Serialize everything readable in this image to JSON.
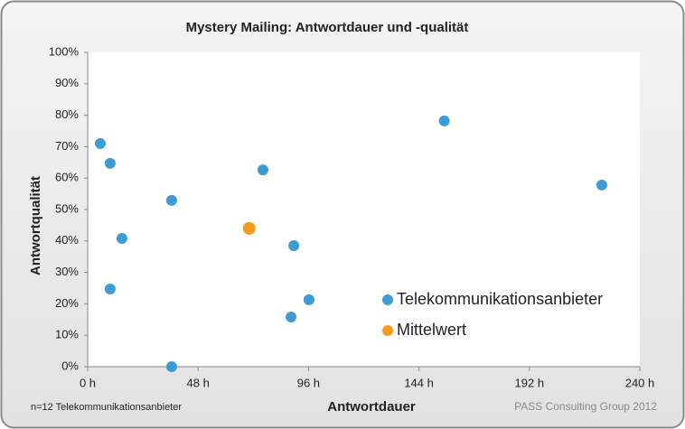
{
  "chart_data": {
    "type": "scatter",
    "title": "Mystery Mailing: Antwortdauer und -qualität",
    "x_label": "Antwortdauer",
    "y_label": "Antwortqualität",
    "footnote": "n=12 Telekommunikationsanbieter",
    "source": "PASS Consulting Group 2012",
    "xlim": [
      0,
      240
    ],
    "xticks": [
      {
        "value": 0,
        "label": "0 h"
      },
      {
        "value": 48,
        "label": "48 h"
      },
      {
        "value": 96,
        "label": "96 h"
      },
      {
        "value": 144,
        "label": "144 h"
      },
      {
        "value": 192,
        "label": "192 h"
      },
      {
        "value": 240,
        "label": "240 h"
      }
    ],
    "ylim": [
      0,
      100
    ],
    "yticks": [
      {
        "value": 0,
        "label": "0%"
      },
      {
        "value": 10,
        "label": "10%"
      },
      {
        "value": 20,
        "label": "20%"
      },
      {
        "value": 30,
        "label": "30%"
      },
      {
        "value": 40,
        "label": "40%"
      },
      {
        "value": 50,
        "label": "50%"
      },
      {
        "value": 60,
        "label": "60%"
      },
      {
        "value": 70,
        "label": "70%"
      },
      {
        "value": 80,
        "label": "80%"
      },
      {
        "value": 90,
        "label": "90%"
      },
      {
        "value": 100,
        "label": "100%"
      }
    ],
    "grid": false,
    "legend": "lower right",
    "series": [
      {
        "name": "Telekommunikationsanbieter",
        "color": "#3d9bd6",
        "x": [
          5.5,
          9.8,
          14.9,
          9.8,
          36.5,
          36.5,
          76.2,
          89.6,
          88.4,
          96.2,
          155,
          223.5
        ],
        "values": [
          71,
          64.7,
          40.8,
          24.7,
          52.9,
          0,
          62.6,
          38.5,
          15.8,
          21.3,
          78.2,
          57.8
        ]
      },
      {
        "name": "Mittelwert",
        "color": "#f59a1b",
        "x": [
          70.2
        ],
        "values": [
          44
        ]
      }
    ]
  }
}
